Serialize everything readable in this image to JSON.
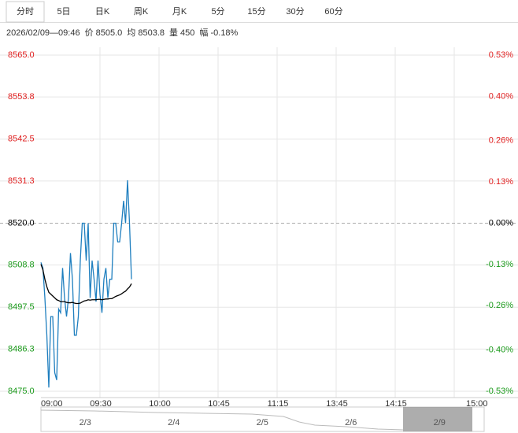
{
  "tabs": [
    "分时",
    "5日",
    "日K",
    "周K",
    "月K",
    "5分",
    "15分",
    "30分",
    "60分"
  ],
  "active_tab": 0,
  "info": [
    "2026/02/09—09:46",
    "价 8505.0",
    "均 8503.8",
    "量 450",
    "幅 -0.18%"
  ],
  "chart_data": {
    "type": "line",
    "x": [
      "09:00",
      "09:01",
      "09:02",
      "09:03",
      "09:04",
      "09:05",
      "09:06",
      "09:07",
      "09:08",
      "09:09",
      "09:10",
      "09:11",
      "09:12",
      "09:13",
      "09:14",
      "09:15",
      "09:16",
      "09:17",
      "09:18",
      "09:19",
      "09:20",
      "09:21",
      "09:22",
      "09:23",
      "09:24",
      "09:25",
      "09:26",
      "09:27",
      "09:28",
      "09:29",
      "09:30",
      "09:31",
      "09:32",
      "09:33",
      "09:34",
      "09:35",
      "09:36",
      "09:37",
      "09:38",
      "09:39",
      "09:40",
      "09:41",
      "09:42",
      "09:43",
      "09:44",
      "09:45",
      "09:46"
    ],
    "series": [
      {
        "color": "#1f7fbf",
        "values": [
          8509.5,
          8508,
          8500,
          8490,
          8476,
          8495,
          8495,
          8480,
          8478,
          8497,
          8496,
          8508,
          8500,
          8495,
          8500,
          8512,
          8505,
          8490,
          8490,
          8495,
          8510,
          8520,
          8520,
          8510,
          8520,
          8500,
          8510,
          8505,
          8499,
          8510,
          8501,
          8496,
          8505,
          8508,
          8500,
          8505,
          8505,
          8520,
          8520,
          8515,
          8515,
          8520,
          8526,
          8520,
          8531.5,
          8520,
          8505
        ]
      },
      {
        "color": "#000000",
        "values": [
          8509,
          8507.5,
          8505,
          8503,
          8501.5,
          8501,
          8500.5,
          8500,
          8499.5,
          8499.3,
          8499,
          8499,
          8499,
          8498.8,
          8498.7,
          8498.7,
          8498.8,
          8498.6,
          8498.5,
          8498.5,
          8498.6,
          8498.9,
          8499.2,
          8499.3,
          8499.5,
          8499.4,
          8499.5,
          8499.5,
          8499.5,
          8499.6,
          8499.6,
          8499.5,
          8499.6,
          8499.7,
          8499.7,
          8499.8,
          8499.8,
          8500.1,
          8500.4,
          8500.6,
          8500.8,
          8501.1,
          8501.5,
          8501.8,
          8502.4,
          8502.9,
          8503.8
        ]
      }
    ],
    "ylim": [
      8475,
      8565
    ],
    "yticks": [
      {
        "value": 8475,
        "label": "8475.0"
      },
      8486.3,
      8497.5,
      8508.8,
      {
        "value": 8520,
        "label": "8520.0"
      },
      8531.3,
      8542.5,
      8553.8,
      {
        "value": 8565,
        "label": "8565.0"
      }
    ],
    "y2lim": [
      -0.53,
      0.53
    ],
    "y2ticks": [
      {
        "value": -0.53,
        "label": "-0.53%"
      },
      {
        "value": -0.4,
        "label": "-0.40%"
      },
      {
        "value": -0.26,
        "label": "-0.26%"
      },
      {
        "value": -0.13,
        "label": "-0.13%"
      },
      {
        "value": 0,
        "label": "0.00%"
      },
      {
        "value": 0.13,
        "label": "0.13%"
      },
      {
        "value": 0.26,
        "label": "0.26%"
      },
      {
        "value": 0.4,
        "label": "0.40%"
      },
      {
        "value": 0.53,
        "label": "0.53%"
      }
    ],
    "xticks": [
      "09:00",
      "09:30",
      "10:00",
      "10:45",
      "11:15",
      "13:45",
      "14:15",
      "15:00"
    ],
    "grid": true,
    "up_color": "#e02020",
    "down_color": "#1a9a1a",
    "navigator": [
      "2/3",
      "2/4",
      "2/5",
      "2/6",
      "2/9"
    ]
  }
}
